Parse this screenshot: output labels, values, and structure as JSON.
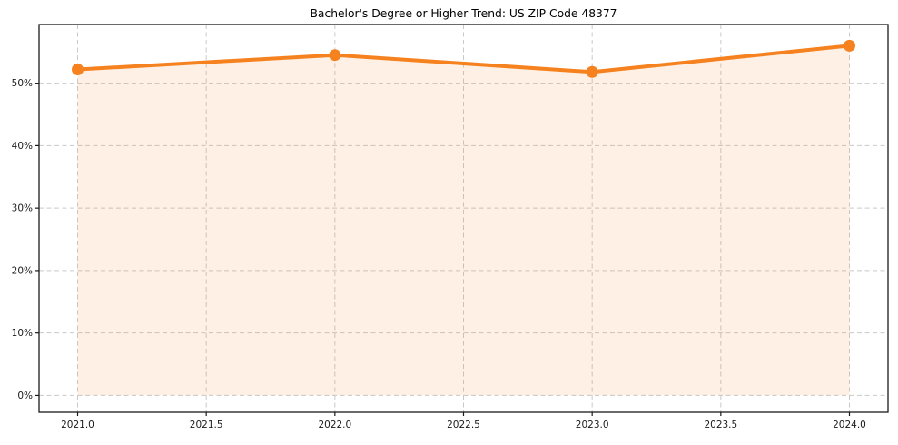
{
  "page": {
    "background": "#ffffff"
  },
  "chart_data": {
    "type": "line",
    "title": "Bachelor's Degree or Higher Trend: US ZIP Code 48377",
    "xlabel": "",
    "ylabel": "",
    "x": [
      2021,
      2022,
      2023,
      2024
    ],
    "values": [
      52.2,
      54.5,
      51.8,
      56.0
    ],
    "area_fill_baseline": 0,
    "xticks": {
      "positions": [
        2021.0,
        2021.5,
        2022.0,
        2022.5,
        2023.0,
        2023.5,
        2024.0
      ],
      "labels": [
        "2021.0",
        "2021.5",
        "2022.0",
        "2022.5",
        "2023.0",
        "2023.5",
        "2024.0"
      ]
    },
    "yticks": {
      "positions": [
        0,
        10,
        20,
        30,
        40,
        50
      ],
      "labels": [
        "0%",
        "10%",
        "20%",
        "30%",
        "40%",
        "50%"
      ]
    },
    "xlim": [
      2020.85,
      2024.15
    ],
    "ylim": [
      -2.7,
      59.4
    ],
    "grid": true,
    "grid_style": "dashed",
    "legend": "none",
    "marker": "circle",
    "colors": {
      "line": "#f5821f",
      "fill": "#f5821f",
      "fill_opacity": 0.12,
      "grid": "#c9c9c9",
      "spine": "#1a1a1a",
      "tick_text": "#1a1a1a",
      "title_text": "#000000",
      "background": "#ffffff"
    }
  }
}
